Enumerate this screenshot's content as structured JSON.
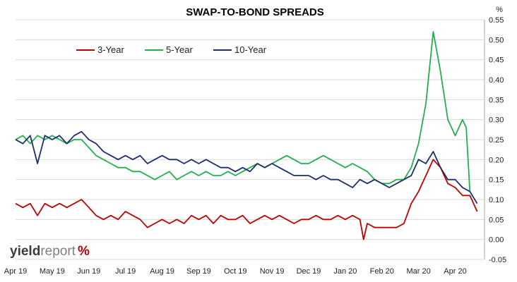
{
  "chart_data": {
    "type": "line",
    "title": "SWAP-TO-BOND SPREADS",
    "y_unit": "%",
    "xlabel": "",
    "ylabel": "",
    "ylim": [
      -0.05,
      0.55
    ],
    "yticks": [
      0.55,
      0.5,
      0.45,
      0.4,
      0.35,
      0.3,
      0.25,
      0.2,
      0.15,
      0.1,
      0.05,
      0.0,
      -0.05
    ],
    "ytick_labels": [
      "0.55",
      "0.50",
      "0.45",
      "0.40",
      "0.35",
      "0.30",
      "0.25",
      "0.20",
      "0.15",
      "0.10",
      "0.05",
      "0.00",
      "-0.05"
    ],
    "xlim": [
      0,
      12.8
    ],
    "x_tick_labels": [
      "Apr 19",
      "May 19",
      "Jun 19",
      "Jul 19",
      "Aug 19",
      "Sep 19",
      "Oct 19",
      "Nov 19",
      "Dec 19",
      "Jan 20",
      "Feb 20",
      "Mar 20",
      "Apr 20"
    ],
    "x_tick_positions": [
      0,
      1,
      2,
      3,
      4,
      5,
      6,
      7,
      8,
      9,
      10,
      11,
      12
    ],
    "grid": true,
    "y_axis_side": "right",
    "legend_placement": "top-left",
    "series": [
      {
        "name": "3-Year",
        "color": "#c00000",
        "x": [
          0.0,
          0.2,
          0.4,
          0.6,
          0.8,
          1.0,
          1.2,
          1.4,
          1.6,
          1.8,
          2.0,
          2.2,
          2.4,
          2.6,
          2.8,
          3.0,
          3.2,
          3.4,
          3.6,
          3.8,
          4.0,
          4.2,
          4.4,
          4.6,
          4.8,
          5.0,
          5.2,
          5.4,
          5.6,
          5.8,
          6.0,
          6.2,
          6.4,
          6.6,
          6.8,
          7.0,
          7.2,
          7.4,
          7.6,
          7.8,
          8.0,
          8.2,
          8.4,
          8.6,
          8.8,
          9.0,
          9.2,
          9.4,
          9.5,
          9.6,
          9.8,
          10.0,
          10.2,
          10.4,
          10.6,
          10.8,
          11.0,
          11.2,
          11.4,
          11.6,
          11.8,
          12.0,
          12.2,
          12.4,
          12.6
        ],
        "values": [
          0.09,
          0.08,
          0.09,
          0.06,
          0.09,
          0.08,
          0.09,
          0.08,
          0.09,
          0.1,
          0.08,
          0.06,
          0.05,
          0.06,
          0.05,
          0.07,
          0.06,
          0.05,
          0.03,
          0.04,
          0.05,
          0.04,
          0.05,
          0.04,
          0.06,
          0.05,
          0.06,
          0.04,
          0.06,
          0.05,
          0.05,
          0.06,
          0.04,
          0.05,
          0.06,
          0.05,
          0.06,
          0.05,
          0.04,
          0.05,
          0.05,
          0.06,
          0.05,
          0.05,
          0.06,
          0.05,
          0.06,
          0.05,
          0.0,
          0.04,
          0.03,
          0.03,
          0.03,
          0.03,
          0.04,
          0.09,
          0.12,
          0.16,
          0.2,
          0.18,
          0.14,
          0.13,
          0.11,
          0.11,
          0.07
        ]
      },
      {
        "name": "5-Year",
        "color": "#21b04b",
        "x": [
          0.0,
          0.2,
          0.4,
          0.6,
          0.8,
          1.0,
          1.2,
          1.4,
          1.6,
          1.8,
          2.0,
          2.2,
          2.4,
          2.6,
          2.8,
          3.0,
          3.2,
          3.4,
          3.6,
          3.8,
          4.0,
          4.2,
          4.4,
          4.6,
          4.8,
          5.0,
          5.2,
          5.4,
          5.6,
          5.8,
          6.0,
          6.2,
          6.4,
          6.6,
          6.8,
          7.0,
          7.2,
          7.4,
          7.6,
          7.8,
          8.0,
          8.2,
          8.4,
          8.6,
          8.8,
          9.0,
          9.2,
          9.4,
          9.6,
          9.8,
          10.0,
          10.2,
          10.4,
          10.6,
          10.8,
          11.0,
          11.2,
          11.4,
          11.6,
          11.8,
          12.0,
          12.2,
          12.3,
          12.4
        ],
        "values": [
          0.25,
          0.26,
          0.24,
          0.26,
          0.25,
          0.26,
          0.25,
          0.24,
          0.25,
          0.25,
          0.23,
          0.21,
          0.2,
          0.19,
          0.18,
          0.18,
          0.17,
          0.17,
          0.16,
          0.15,
          0.16,
          0.17,
          0.15,
          0.16,
          0.17,
          0.16,
          0.17,
          0.16,
          0.16,
          0.17,
          0.16,
          0.17,
          0.18,
          0.19,
          0.18,
          0.19,
          0.2,
          0.21,
          0.2,
          0.19,
          0.19,
          0.2,
          0.21,
          0.2,
          0.19,
          0.18,
          0.19,
          0.18,
          0.17,
          0.15,
          0.14,
          0.14,
          0.15,
          0.15,
          0.18,
          0.24,
          0.34,
          0.52,
          0.42,
          0.3,
          0.26,
          0.3,
          0.28,
          0.12
        ]
      },
      {
        "name": "10-Year",
        "color": "#1f2d6b",
        "x": [
          0.0,
          0.2,
          0.4,
          0.6,
          0.8,
          1.0,
          1.2,
          1.4,
          1.6,
          1.8,
          2.0,
          2.2,
          2.4,
          2.6,
          2.8,
          3.0,
          3.2,
          3.4,
          3.6,
          3.8,
          4.0,
          4.2,
          4.4,
          4.6,
          4.8,
          5.0,
          5.2,
          5.4,
          5.6,
          5.8,
          6.0,
          6.2,
          6.4,
          6.6,
          6.8,
          7.0,
          7.2,
          7.4,
          7.6,
          7.8,
          8.0,
          8.2,
          8.4,
          8.6,
          8.8,
          9.0,
          9.2,
          9.4,
          9.6,
          9.8,
          10.0,
          10.2,
          10.4,
          10.6,
          10.8,
          11.0,
          11.2,
          11.4,
          11.6,
          11.8,
          12.0,
          12.2,
          12.4,
          12.6
        ],
        "values": [
          0.25,
          0.24,
          0.26,
          0.19,
          0.26,
          0.25,
          0.26,
          0.24,
          0.26,
          0.27,
          0.25,
          0.24,
          0.22,
          0.21,
          0.2,
          0.21,
          0.2,
          0.21,
          0.19,
          0.2,
          0.21,
          0.2,
          0.2,
          0.19,
          0.2,
          0.19,
          0.2,
          0.19,
          0.18,
          0.18,
          0.17,
          0.18,
          0.17,
          0.19,
          0.18,
          0.19,
          0.18,
          0.17,
          0.16,
          0.16,
          0.16,
          0.15,
          0.16,
          0.15,
          0.15,
          0.14,
          0.13,
          0.15,
          0.14,
          0.15,
          0.14,
          0.13,
          0.14,
          0.15,
          0.16,
          0.2,
          0.19,
          0.22,
          0.18,
          0.15,
          0.15,
          0.13,
          0.12,
          0.09
        ]
      }
    ]
  },
  "logo": {
    "part1": "yield",
    "part2": "report",
    "part3": "%"
  }
}
